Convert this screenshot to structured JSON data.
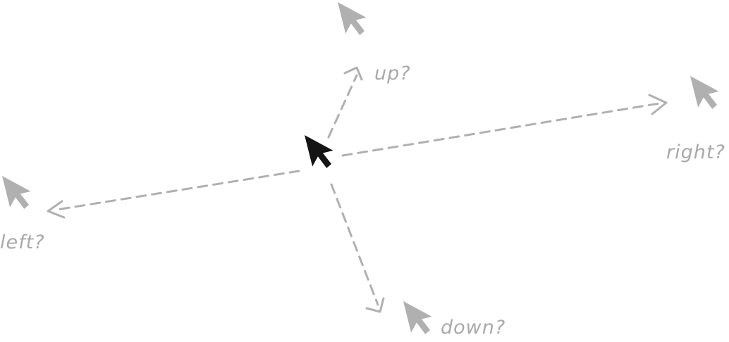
{
  "labels": {
    "up": "up?",
    "right": "right?",
    "left": "left?",
    "down": "down?"
  },
  "colors": {
    "background": "#ffffff",
    "ghost_cursor": "#b0b0b0",
    "guide_line": "#b0b0b0",
    "label_text": "#a9a9a9",
    "current_cursor": "#141414"
  },
  "icons": {
    "current": "cursor-arrow-icon",
    "ghost": "cursor-arrow-icon"
  }
}
